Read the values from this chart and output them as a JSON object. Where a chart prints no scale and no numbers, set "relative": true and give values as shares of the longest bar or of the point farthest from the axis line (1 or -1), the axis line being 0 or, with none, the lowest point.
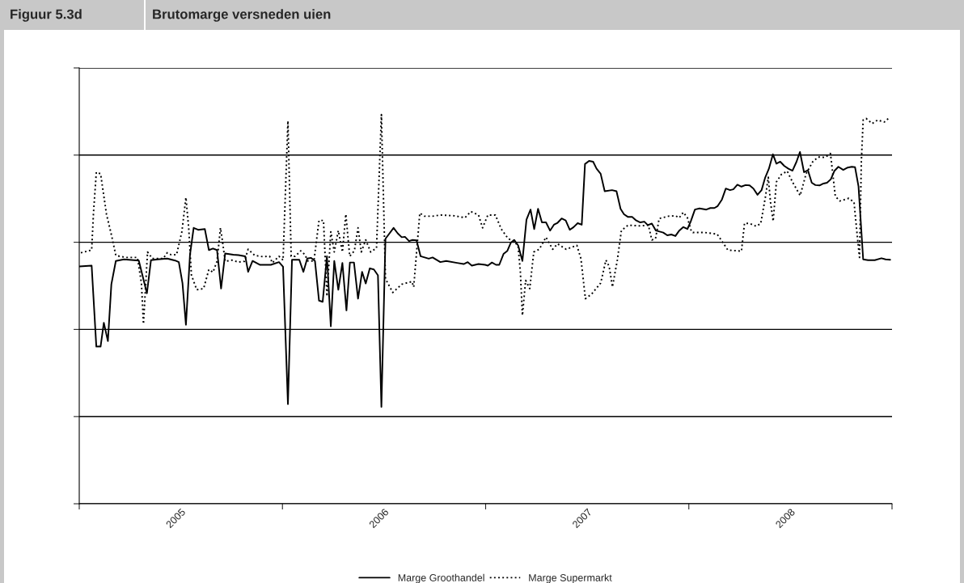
{
  "chart_data": {
    "type": "line",
    "title": "Brutomarge versneden uien",
    "annotations": [
      "Figuur 5.3d"
    ],
    "relative": true,
    "grid": "y",
    "legend": "bottom",
    "tick_labels": "x",
    "marker": "none",
    "xlim": [
      2005,
      2009
    ],
    "xticks": [
      {
        "value": 2005,
        "label": null
      },
      {
        "value": 2005.5,
        "label": "2005"
      },
      {
        "value": 2006,
        "label": null
      },
      {
        "value": 2006.5,
        "label": "2006"
      },
      {
        "value": 2007,
        "label": null
      },
      {
        "value": 2007.5,
        "label": "2007"
      },
      {
        "value": 2008,
        "label": null
      },
      {
        "value": 2008.5,
        "label": "2008"
      },
      {
        "value": 2009,
        "label": null
      }
    ],
    "series": [
      {
        "name": "Marge Groothandel",
        "color": "#000000",
        "line_style": "solid",
        "x": [
          2005.001,
          2005.061,
          2005.084,
          2005.105,
          2005.121,
          2005.141,
          2005.158,
          2005.18,
          2005.22,
          2005.293,
          2005.333,
          2005.353,
          2005.386,
          2005.433,
          2005.472,
          2005.49,
          2005.508,
          2005.525,
          2005.545,
          2005.563,
          2005.585,
          2005.618,
          2005.638,
          2005.658,
          2005.678,
          2005.698,
          2005.718,
          2005.758,
          2005.784,
          2005.817,
          2005.831,
          2005.853,
          2005.89,
          2005.943,
          2005.983,
          2006.003,
          2006.027,
          2006.047,
          2006.083,
          2006.103,
          2006.122,
          2006.14,
          2006.16,
          2006.18,
          2006.198,
          2006.219,
          2006.238,
          2006.255,
          2006.275,
          2006.295,
          2006.315,
          2006.332,
          2006.352,
          2006.372,
          2006.392,
          2006.41,
          2006.43,
          2006.45,
          2006.47,
          2006.487,
          2006.507,
          2006.547,
          2006.567,
          2006.587,
          2006.603,
          2006.623,
          2006.64,
          2006.66,
          2006.68,
          2006.72,
          2006.739,
          2006.777,
          2006.806,
          2006.859,
          2006.892,
          2006.912,
          2006.932,
          2006.965,
          2006.998,
          2007.011,
          2007.031,
          2007.051,
          2007.067,
          2007.088,
          2007.107,
          2007.124,
          2007.141,
          2007.16,
          2007.181,
          2007.201,
          2007.221,
          2007.239,
          2007.258,
          2007.277,
          2007.297,
          2007.317,
          2007.336,
          2007.354,
          2007.374,
          2007.394,
          2007.414,
          2007.433,
          2007.453,
          2007.473,
          2007.489,
          2007.509,
          2007.529,
          2007.546,
          2007.566,
          2007.586,
          2007.622,
          2007.644,
          2007.664,
          2007.681,
          2007.701,
          2007.721,
          2007.741,
          2007.761,
          2007.781,
          2007.798,
          2007.818,
          2007.838,
          2007.874,
          2007.894,
          2007.914,
          2007.934,
          2007.953,
          2007.973,
          2007.993,
          2008.009,
          2008.03,
          2008.053,
          2008.086,
          2008.106,
          2008.126,
          2008.142,
          2008.163,
          2008.182,
          2008.203,
          2008.219,
          2008.239,
          2008.259,
          2008.279,
          2008.299,
          2008.318,
          2008.338,
          2008.358,
          2008.375,
          2008.394,
          2008.414,
          2008.431,
          2008.45,
          2008.47,
          2008.49,
          2008.51,
          2008.53,
          2008.547,
          2008.567,
          2008.586,
          2008.605,
          2008.623,
          2008.643,
          2008.663,
          2008.68,
          2008.699,
          2008.716,
          2008.736,
          2008.76,
          2008.782,
          2008.802,
          2008.818,
          2008.835,
          2008.858,
          2008.882,
          2008.915,
          2008.948,
          2008.968,
          2008.991
        ],
        "values": [
          0.61,
          0.612,
          0.404,
          0.404,
          0.465,
          0.418,
          0.564,
          0.624,
          0.628,
          0.625,
          0.541,
          0.626,
          0.628,
          0.63,
          0.625,
          0.621,
          0.567,
          0.46,
          0.64,
          0.709,
          0.704,
          0.706,
          0.652,
          0.656,
          0.652,
          0.553,
          0.643,
          0.64,
          0.639,
          0.636,
          0.596,
          0.624,
          0.614,
          0.614,
          0.621,
          0.609,
          0.256,
          0.627,
          0.627,
          0.596,
          0.63,
          0.632,
          0.624,
          0.522,
          0.519,
          0.636,
          0.456,
          0.624,
          0.55,
          0.619,
          0.497,
          0.62,
          0.62,
          0.527,
          0.596,
          0.566,
          0.605,
          0.602,
          0.587,
          0.249,
          0.681,
          0.709,
          0.695,
          0.685,
          0.686,
          0.675,
          0.678,
          0.677,
          0.636,
          0.63,
          0.633,
          0.621,
          0.624,
          0.619,
          0.616,
          0.621,
          0.612,
          0.616,
          0.614,
          0.612,
          0.62,
          0.614,
          0.614,
          0.642,
          0.65,
          0.671,
          0.678,
          0.664,
          0.624,
          0.73,
          0.756,
          0.706,
          0.758,
          0.723,
          0.723,
          0.702,
          0.717,
          0.722,
          0.733,
          0.728,
          0.704,
          0.711,
          0.721,
          0.717,
          0.873,
          0.881,
          0.879,
          0.861,
          0.848,
          0.803,
          0.806,
          0.803,
          0.758,
          0.744,
          0.737,
          0.737,
          0.728,
          0.723,
          0.725,
          0.716,
          0.72,
          0.702,
          0.697,
          0.69,
          0.692,
          0.688,
          0.702,
          0.711,
          0.706,
          0.725,
          0.756,
          0.759,
          0.756,
          0.76,
          0.76,
          0.765,
          0.782,
          0.81,
          0.806,
          0.808,
          0.82,
          0.815,
          0.819,
          0.818,
          0.81,
          0.794,
          0.806,
          0.837,
          0.861,
          0.898,
          0.874,
          0.879,
          0.868,
          0.861,
          0.856,
          0.879,
          0.904,
          0.852,
          0.857,
          0.825,
          0.819,
          0.818,
          0.823,
          0.825,
          0.834,
          0.855,
          0.866,
          0.858,
          0.864,
          0.866,
          0.865,
          0.816,
          0.628,
          0.626,
          0.626,
          0.631,
          0.628,
          0.627
        ]
      },
      {
        "name": "Marge Supermarkt",
        "color": "#000000",
        "line_style": "dotted",
        "x": [
          2005.008,
          2005.061,
          2005.07,
          2005.084,
          2005.105,
          2005.134,
          2005.161,
          2005.18,
          2005.207,
          2005.233,
          2005.286,
          2005.306,
          2005.316,
          2005.336,
          2005.36,
          2005.413,
          2005.433,
          2005.452,
          2005.479,
          2005.505,
          2005.525,
          2005.539,
          2005.552,
          2005.578,
          2005.612,
          2005.638,
          2005.658,
          2005.678,
          2005.695,
          2005.704,
          2005.718,
          2005.751,
          2005.784,
          2005.813,
          2005.831,
          2005.864,
          2005.903,
          2005.937,
          2005.95,
          2005.983,
          2006.003,
          2006.027,
          2006.043,
          2006.063,
          2006.09,
          2006.109,
          2006.126,
          2006.155,
          2006.18,
          2006.202,
          2006.219,
          2006.238,
          2006.255,
          2006.275,
          2006.295,
          2006.312,
          2006.331,
          2006.354,
          2006.372,
          2006.388,
          2006.41,
          2006.434,
          2006.463,
          2006.487,
          2006.507,
          2006.543,
          2006.587,
          2006.637,
          2006.646,
          2006.676,
          2006.699,
          2006.739,
          2006.779,
          2006.845,
          2006.898,
          2006.927,
          2006.965,
          2006.985,
          2007.011,
          2007.048,
          2007.077,
          2007.111,
          2007.141,
          2007.16,
          2007.171,
          2007.181,
          2007.197,
          2007.217,
          2007.237,
          2007.264,
          2007.297,
          2007.33,
          2007.354,
          2007.396,
          2007.449,
          2007.469,
          2007.491,
          2007.522,
          2007.566,
          2007.592,
          2007.608,
          2007.624,
          2007.648,
          2007.668,
          2007.701,
          2007.761,
          2007.801,
          2007.818,
          2007.836,
          2007.854,
          2007.9,
          2007.934,
          2007.953,
          2007.973,
          2007.993,
          2008.013,
          2008.02,
          2008.079,
          2008.139,
          2008.159,
          2008.192,
          2008.259,
          2008.274,
          2008.301,
          2008.331,
          2008.354,
          2008.378,
          2008.391,
          2008.402,
          2008.415,
          2008.431,
          2008.455,
          2008.484,
          2008.51,
          2008.548,
          2008.577,
          2008.61,
          2008.637,
          2008.67,
          2008.697,
          2008.721,
          2008.743,
          2008.763,
          2008.787,
          2008.813,
          2008.829,
          2008.84,
          2008.849,
          2008.858,
          2008.873,
          2008.902,
          2008.929,
          2008.962,
          2008.982
        ],
        "values": [
          0.645,
          0.652,
          0.747,
          0.852,
          0.848,
          0.744,
          0.685,
          0.638,
          0.635,
          0.633,
          0.633,
          0.567,
          0.462,
          0.647,
          0.63,
          0.63,
          0.645,
          0.64,
          0.64,
          0.699,
          0.787,
          0.706,
          0.588,
          0.55,
          0.553,
          0.602,
          0.595,
          0.623,
          0.709,
          0.678,
          0.623,
          0.626,
          0.621,
          0.623,
          0.654,
          0.638,
          0.635,
          0.636,
          0.619,
          0.636,
          0.626,
          0.984,
          0.636,
          0.636,
          0.65,
          0.641,
          0.624,
          0.624,
          0.728,
          0.728,
          0.533,
          0.699,
          0.647,
          0.702,
          0.647,
          0.744,
          0.636,
          0.65,
          0.709,
          0.647,
          0.678,
          0.647,
          0.657,
          1.0,
          0.578,
          0.543,
          0.564,
          0.571,
          0.557,
          0.747,
          0.739,
          0.739,
          0.742,
          0.74,
          0.735,
          0.751,
          0.742,
          0.709,
          0.742,
          0.742,
          0.706,
          0.681,
          0.675,
          0.661,
          0.595,
          0.484,
          0.574,
          0.553,
          0.647,
          0.654,
          0.685,
          0.654,
          0.668,
          0.654,
          0.664,
          0.63,
          0.527,
          0.539,
          0.567,
          0.626,
          0.61,
          0.557,
          0.626,
          0.702,
          0.716,
          0.714,
          0.716,
          0.678,
          0.681,
          0.733,
          0.739,
          0.74,
          0.735,
          0.749,
          0.735,
          0.699,
          0.697,
          0.697,
          0.693,
          0.678,
          0.652,
          0.649,
          0.721,
          0.72,
          0.713,
          0.72,
          0.792,
          0.839,
          0.775,
          0.726,
          0.827,
          0.846,
          0.855,
          0.827,
          0.792,
          0.848,
          0.879,
          0.891,
          0.89,
          0.9,
          0.79,
          0.778,
          0.781,
          0.785,
          0.775,
          0.688,
          0.633,
          0.879,
          0.986,
          0.99,
          0.977,
          0.986,
          0.981,
          0.99
        ]
      }
    ]
  }
}
